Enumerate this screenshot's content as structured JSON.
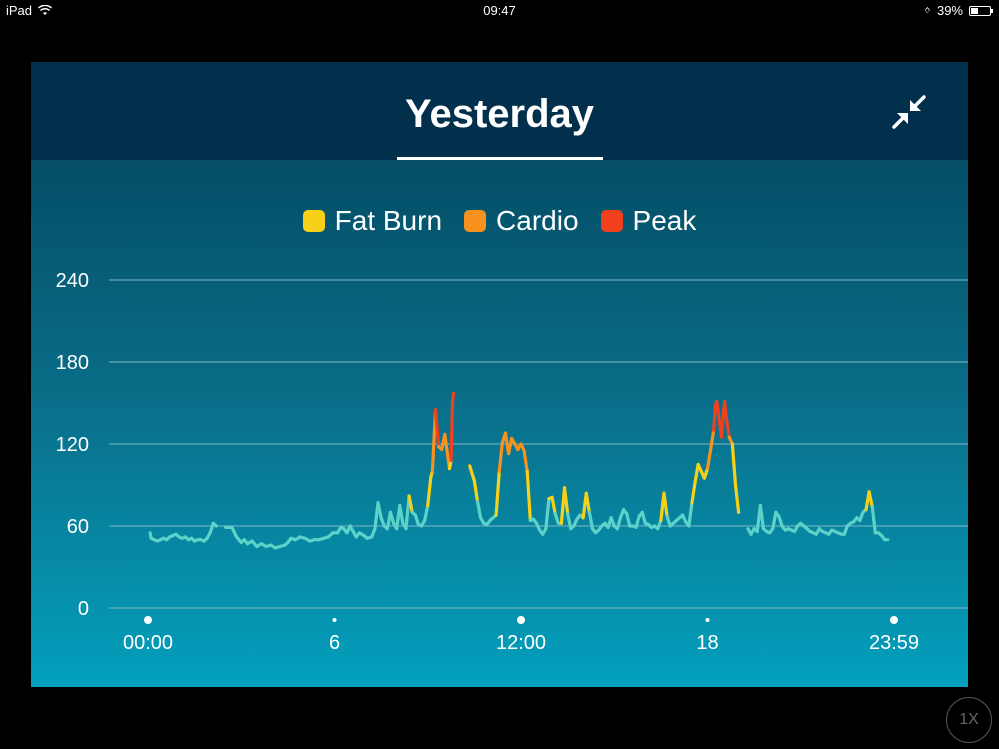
{
  "status_bar": {
    "device": "iPad",
    "time": "09:47",
    "battery": "39%",
    "battery_level": 0.39
  },
  "header": {
    "title": "Yesterday",
    "collapse_icon": "collapse-arrows-icon"
  },
  "zoom_button": {
    "label": "1X"
  },
  "colors": {
    "resting": "#5cd2c9",
    "fat_burn": "#f7d118",
    "cardio": "#f7921e",
    "peak": "#f2401e",
    "grid": "#7fb7c6"
  },
  "chart_data": {
    "type": "line",
    "legend": [
      {
        "name": "Fat Burn",
        "color": "#f7d118"
      },
      {
        "name": "Cardio",
        "color": "#f7921e"
      },
      {
        "name": "Peak",
        "color": "#f2401e"
      }
    ],
    "y_ticks": [
      "240",
      "180",
      "120",
      "60",
      "0"
    ],
    "y_tick_values": [
      240,
      180,
      120,
      60,
      0
    ],
    "ylim": [
      0,
      240
    ],
    "x_ticks": [
      "00:00",
      "6",
      "12:00",
      "18",
      "23:59"
    ],
    "x_tick_values": [
      0,
      6,
      12,
      18,
      24
    ],
    "xlim": [
      0,
      24
    ],
    "zones": {
      "fat_burn_min": 73,
      "cardio_min": 106,
      "peak_min": 130
    },
    "series": [
      {
        "segments": [
          [
            [
              0.07,
              55
            ],
            [
              0.1,
              51
            ],
            [
              0.2,
              50
            ],
            [
              0.3,
              49
            ],
            [
              0.4,
              50
            ],
            [
              0.5,
              51
            ],
            [
              0.6,
              50
            ],
            [
              0.7,
              52
            ],
            [
              0.8,
              53
            ],
            [
              0.9,
              54
            ],
            [
              1.0,
              52
            ],
            [
              1.1,
              51
            ],
            [
              1.2,
              52
            ],
            [
              1.3,
              50
            ],
            [
              1.4,
              51
            ],
            [
              1.5,
              49
            ],
            [
              1.6,
              50
            ],
            [
              1.7,
              50
            ],
            [
              1.8,
              49
            ],
            [
              1.9,
              51
            ],
            [
              2.0,
              55
            ],
            [
              2.1,
              62
            ],
            [
              2.2,
              60
            ]
          ],
          [
            [
              2.5,
              59
            ],
            [
              2.7,
              59
            ],
            [
              2.85,
              52
            ],
            [
              3.0,
              48
            ],
            [
              3.1,
              50
            ],
            [
              3.2,
              47
            ],
            [
              3.35,
              49
            ],
            [
              3.5,
              45
            ],
            [
              3.65,
              47
            ],
            [
              3.8,
              45
            ],
            [
              3.95,
              46
            ],
            [
              4.1,
              44
            ],
            [
              4.25,
              45
            ],
            [
              4.4,
              46
            ],
            [
              4.5,
              48
            ],
            [
              4.6,
              51
            ],
            [
              4.75,
              50
            ],
            [
              4.9,
              52
            ],
            [
              5.05,
              51
            ],
            [
              5.2,
              49
            ],
            [
              5.35,
              50
            ],
            [
              5.5,
              50
            ],
            [
              5.65,
              51
            ],
            [
              5.8,
              52
            ],
            [
              5.95,
              55
            ],
            [
              6.1,
              55
            ],
            [
              6.2,
              59
            ],
            [
              6.3,
              58
            ],
            [
              6.4,
              55
            ],
            [
              6.5,
              60
            ],
            [
              6.6,
              56
            ],
            [
              6.7,
              52
            ],
            [
              6.8,
              55
            ],
            [
              6.95,
              53
            ],
            [
              7.05,
              51
            ],
            [
              7.2,
              52
            ],
            [
              7.3,
              58
            ],
            [
              7.4,
              77
            ],
            [
              7.5,
              66
            ],
            [
              7.6,
              60
            ],
            [
              7.7,
              58
            ],
            [
              7.8,
              70
            ],
            [
              7.9,
              62
            ],
            [
              8.0,
              58
            ],
            [
              8.1,
              75
            ],
            [
              8.2,
              62
            ],
            [
              8.3,
              58
            ],
            [
              8.4,
              82
            ],
            [
              8.5,
              70
            ],
            [
              8.6,
              68
            ],
            [
              8.7,
              61
            ],
            [
              8.8,
              60
            ],
            [
              8.9,
              64
            ],
            [
              9.0,
              75
            ],
            [
              9.1,
              96
            ],
            [
              9.15,
              100
            ],
            [
              9.25,
              145
            ],
            [
              9.35,
              118
            ],
            [
              9.45,
              116
            ],
            [
              9.55,
              127
            ],
            [
              9.65,
              110
            ],
            [
              9.7,
              102
            ],
            [
              9.75,
              108
            ],
            [
              9.8,
              152
            ],
            [
              9.83,
              157
            ]
          ],
          [
            [
              10.35,
              104
            ],
            [
              10.5,
              93
            ],
            [
              10.6,
              78
            ],
            [
              10.7,
              66
            ],
            [
              10.8,
              62
            ],
            [
              10.9,
              61
            ],
            [
              11.0,
              64
            ],
            [
              11.1,
              66
            ],
            [
              11.2,
              68
            ],
            [
              11.3,
              100
            ],
            [
              11.4,
              121
            ],
            [
              11.5,
              128
            ],
            [
              11.6,
              113
            ],
            [
              11.7,
              124
            ],
            [
              11.8,
              120
            ],
            [
              11.9,
              116
            ],
            [
              12.0,
              120
            ],
            [
              12.1,
              115
            ],
            [
              12.2,
              100
            ],
            [
              12.3,
              64
            ],
            [
              12.4,
              65
            ],
            [
              12.5,
              62
            ],
            [
              12.6,
              57
            ],
            [
              12.7,
              54
            ],
            [
              12.8,
              58
            ],
            [
              12.9,
              80
            ],
            [
              13.0,
              81
            ],
            [
              13.1,
              69
            ],
            [
              13.2,
              62
            ],
            [
              13.3,
              62
            ],
            [
              13.4,
              88
            ],
            [
              13.5,
              69
            ],
            [
              13.6,
              58
            ],
            [
              13.7,
              60
            ],
            [
              13.8,
              65
            ],
            [
              13.9,
              68
            ],
            [
              14.0,
              66
            ],
            [
              14.1,
              84
            ],
            [
              14.2,
              70
            ],
            [
              14.3,
              58
            ],
            [
              14.4,
              55
            ],
            [
              14.5,
              57
            ],
            [
              14.6,
              60
            ],
            [
              14.7,
              62
            ],
            [
              14.8,
              59
            ],
            [
              14.9,
              66
            ],
            [
              15.0,
              60
            ],
            [
              15.1,
              58
            ],
            [
              15.2,
              66
            ],
            [
              15.3,
              72
            ],
            [
              15.4,
              69
            ],
            [
              15.5,
              60
            ],
            [
              15.6,
              60
            ],
            [
              15.7,
              59
            ],
            [
              15.8,
              67
            ],
            [
              15.9,
              70
            ],
            [
              16.0,
              62
            ],
            [
              16.1,
              61
            ],
            [
              16.2,
              59
            ],
            [
              16.3,
              60
            ],
            [
              16.4,
              58
            ],
            [
              16.5,
              64
            ],
            [
              16.6,
              84
            ],
            [
              16.7,
              67
            ],
            [
              16.8,
              60
            ],
            [
              16.9,
              62
            ],
            [
              17.0,
              64
            ],
            [
              17.1,
              66
            ],
            [
              17.2,
              68
            ],
            [
              17.3,
              63
            ],
            [
              17.4,
              60
            ],
            [
              17.5,
              77
            ],
            [
              17.6,
              92
            ],
            [
              17.7,
              105
            ],
            [
              17.8,
              100
            ],
            [
              17.9,
              95
            ],
            [
              18.0,
              102
            ],
            [
              18.1,
              116
            ],
            [
              18.2,
              130
            ],
            [
              18.25,
              148
            ],
            [
              18.3,
              151
            ],
            [
              18.35,
              142
            ],
            [
              18.45,
              125
            ],
            [
              18.5,
              140
            ],
            [
              18.55,
              151
            ],
            [
              18.6,
              140
            ],
            [
              18.7,
              125
            ],
            [
              18.8,
              120
            ],
            [
              18.9,
              90
            ],
            [
              19.0,
              70
            ]
          ],
          [
            [
              19.3,
              58
            ],
            [
              19.4,
              54
            ],
            [
              19.5,
              58
            ],
            [
              19.6,
              56
            ],
            [
              19.7,
              75
            ],
            [
              19.8,
              58
            ],
            [
              19.9,
              56
            ],
            [
              20.0,
              55
            ],
            [
              20.1,
              58
            ],
            [
              20.2,
              70
            ],
            [
              20.3,
              67
            ],
            [
              20.4,
              60
            ],
            [
              20.5,
              57
            ],
            [
              20.6,
              58
            ],
            [
              20.7,
              57
            ],
            [
              20.8,
              56
            ],
            [
              20.9,
              60
            ],
            [
              21.0,
              62
            ],
            [
              21.1,
              60
            ],
            [
              21.2,
              58
            ],
            [
              21.3,
              56
            ],
            [
              21.4,
              55
            ],
            [
              21.5,
              54
            ],
            [
              21.6,
              58
            ],
            [
              21.7,
              56
            ],
            [
              21.8,
              55
            ],
            [
              21.9,
              54
            ],
            [
              22.0,
              57
            ],
            [
              22.1,
              56
            ],
            [
              22.2,
              55
            ],
            [
              22.3,
              54
            ],
            [
              22.4,
              54
            ],
            [
              22.5,
              60
            ],
            [
              22.6,
              62
            ],
            [
              22.7,
              63
            ],
            [
              22.8,
              66
            ],
            [
              22.9,
              64
            ],
            [
              23.0,
              70
            ],
            [
              23.1,
              72
            ],
            [
              23.2,
              85
            ],
            [
              23.3,
              74
            ],
            [
              23.4,
              55
            ],
            [
              23.5,
              55
            ],
            [
              23.6,
              53
            ],
            [
              23.7,
              50
            ],
            [
              23.8,
              50
            ]
          ]
        ]
      }
    ]
  }
}
